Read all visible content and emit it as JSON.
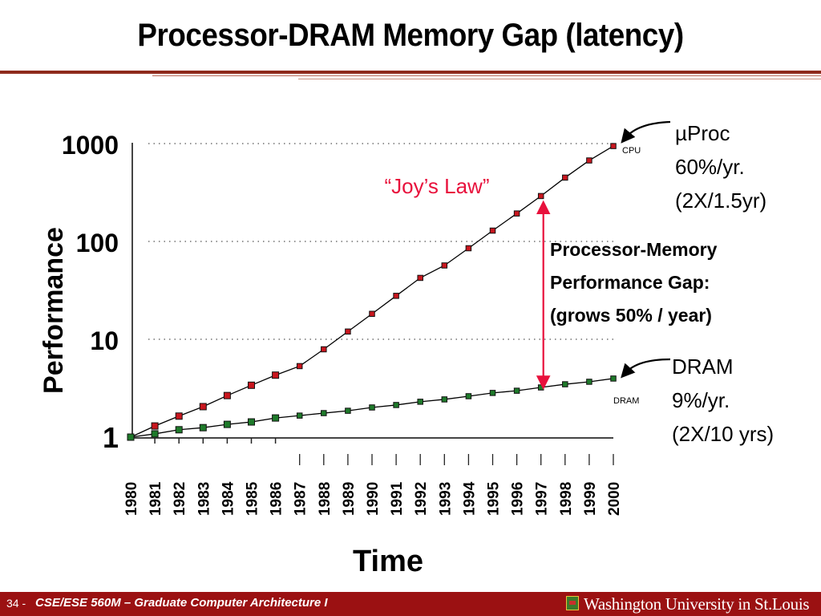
{
  "slide": {
    "title": "Processor-DRAM Memory Gap (latency)",
    "page_number": "34 -",
    "course": "CSE/ESE 560M – Graduate Computer Architecture I",
    "university": "Washington University in St.Louis",
    "footer_color": "#9b1112",
    "rule_color": "#8e2a1c"
  },
  "chart_data": {
    "type": "line",
    "title": "Processor-DRAM Memory Gap (latency)",
    "xlabel": "Time",
    "ylabel": "Performance",
    "yscale": "log",
    "ylim": [
      1,
      1000
    ],
    "xlim": [
      1980,
      2000
    ],
    "grid": "dotted horizontal at 10, 100, 1000",
    "y_ticks": [
      1,
      10,
      100,
      1000
    ],
    "y_tick_labels": [
      "1",
      "10",
      "100",
      "1000"
    ],
    "x": [
      1980,
      1981,
      1982,
      1983,
      1984,
      1985,
      1986,
      1987,
      1988,
      1989,
      1990,
      1991,
      1992,
      1993,
      1994,
      1995,
      1996,
      1997,
      1998,
      1999,
      2000
    ],
    "x_tick_labels": [
      "1980",
      "1981",
      "1982",
      "1983",
      "1984",
      "1985",
      "1986",
      "1987",
      "1988",
      "1989",
      "1990",
      "1991",
      "1992",
      "1993",
      "1994",
      "1995",
      "1996",
      "1997",
      "1998",
      "1999",
      "2000"
    ],
    "series": [
      {
        "name": "CPU",
        "color": "#c8161e",
        "values": [
          1,
          1.3,
          1.64,
          2.05,
          2.66,
          3.39,
          4.3,
          5.32,
          7.9,
          12.0,
          18.2,
          27.8,
          42.4,
          56.8,
          85.2,
          129,
          193,
          291,
          449,
          672,
          943
        ]
      },
      {
        "name": "DRAM",
        "color": "#1e7a2a",
        "values": [
          1,
          1.08,
          1.19,
          1.25,
          1.35,
          1.43,
          1.57,
          1.66,
          1.76,
          1.86,
          2.01,
          2.13,
          2.3,
          2.43,
          2.62,
          2.83,
          2.98,
          3.22,
          3.47,
          3.68,
          3.97
        ]
      }
    ],
    "annotations": {
      "joys_law": "“Joy’s Law”",
      "cpu_note": [
        "µProc",
        "60%/yr.",
        "(2X/1.5yr)"
      ],
      "dram_note": [
        "DRAM",
        "9%/yr.",
        "(2X/10 yrs)"
      ],
      "gap_note": [
        "Processor-Memory",
        "Performance Gap:",
        "(grows 50% / year)"
      ],
      "gap_year": 1997,
      "accent_color": "#e8113c"
    }
  }
}
